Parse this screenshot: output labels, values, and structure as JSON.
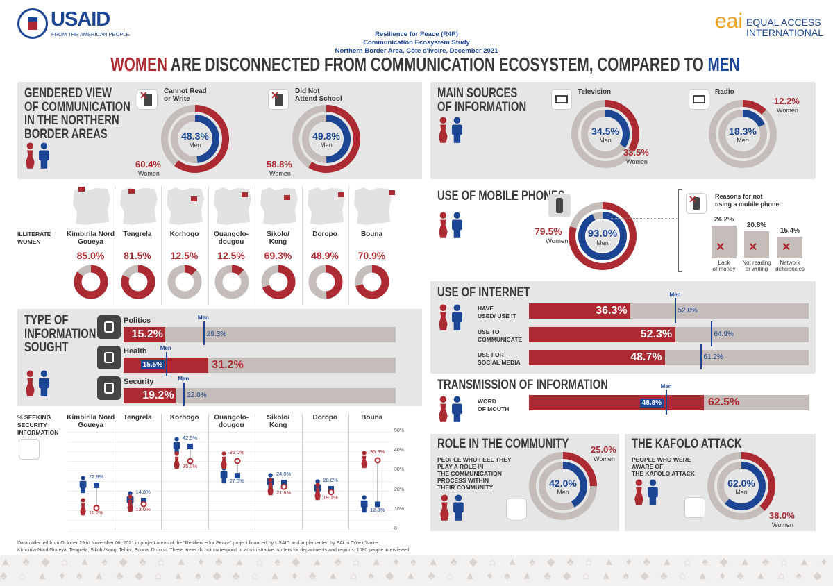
{
  "colors": {
    "women": "#ac2a32",
    "men": "#1c4694",
    "neutral": "#c5bdb9",
    "panel": "#e6e6e6",
    "heading": "#3a3a3a"
  },
  "header": {
    "left_logo": "USAID",
    "left_tagline": "FROM THE AMERICAN PEOPLE",
    "center_lines": [
      "Resilience for Peace (R4P)",
      "Communication Ecosystem Study",
      "Northern Border Area, Côte d'Ivoire, December 2021"
    ],
    "right_logo": "eai",
    "right_name": [
      "EQUAL ACCESS",
      "INTERNATIONAL"
    ]
  },
  "title": {
    "women": "WOMEN",
    "middle": " ARE DISCONNECTED FROM COMMUNICATION ECOSYSTEM, COMPARED TO ",
    "men": "MEN"
  },
  "gendered": {
    "title": [
      "GENDERED VIEW",
      "OF COMMUNICATION",
      "IN THE NORTHERN",
      "BORDER AREAS"
    ],
    "items": [
      {
        "icon": "document-cross-icon",
        "label": [
          "Cannot Read",
          "or Write"
        ],
        "women": "60.4%",
        "women_label": "Women",
        "men": "48.3%",
        "men_label": "Men"
      },
      {
        "icon": "school-cross-icon",
        "label": [
          "Did Not",
          "Attend School"
        ],
        "women": "58.8%",
        "women_label": "Women",
        "men": "49.8%",
        "men_label": "Men"
      }
    ]
  },
  "illiterate": {
    "label": [
      "ILLITERATE",
      "WOMEN"
    ],
    "regions": [
      {
        "name": [
          "Kimbirila Nord",
          "Goueya"
        ],
        "value": "85.0%"
      },
      {
        "name": [
          "Tengrela",
          ""
        ],
        "value": "81.5%"
      },
      {
        "name": [
          "Korhogo",
          ""
        ],
        "value": "12.5%"
      },
      {
        "name": [
          "Ouangolo-",
          "dougou"
        ],
        "value": "12.5%"
      },
      {
        "name": [
          "Sikolo/",
          "Kong"
        ],
        "value": "69.3%"
      },
      {
        "name": [
          "Doropo",
          ""
        ],
        "value": "48.9%"
      },
      {
        "name": [
          "Bouna",
          ""
        ],
        "value": "70.9%"
      }
    ]
  },
  "info_sought": {
    "title": [
      "TYPE OF",
      "INFORMATION",
      "SOUGHT"
    ],
    "men_label": "Men",
    "items": [
      {
        "icon": "ballot-box-icon",
        "label": "Politics",
        "women": "15.2%",
        "men": "29.3%"
      },
      {
        "icon": "medical-cross-icon",
        "label": "Health",
        "women": "31.2%",
        "men": "15.5%"
      },
      {
        "icon": "soldier-icon",
        "label": "Security",
        "women": "19.2%",
        "men": "22.0%"
      }
    ]
  },
  "security": {
    "title": [
      "% SEEKING",
      "SECURITY",
      "INFORMATION"
    ],
    "y_ticks": [
      "0",
      "10%",
      "20%",
      "30%",
      "40%",
      "50%"
    ],
    "ylim": [
      0,
      50
    ],
    "regions": [
      {
        "name": [
          "Kimbirila Nord",
          "Goueya"
        ],
        "men": "22.8%",
        "women": "11.2%"
      },
      {
        "name": [
          "Tengrela",
          ""
        ],
        "men": "14.8%",
        "women": "13.0%"
      },
      {
        "name": [
          "Korhogo",
          ""
        ],
        "men": "42.5%",
        "women": "35.0%"
      },
      {
        "name": [
          "Ouangolo-",
          "dougou"
        ],
        "men": "27.5%",
        "women": "35.0%"
      },
      {
        "name": [
          "Sikolo/",
          "Kong"
        ],
        "men": "24.0%",
        "women": "21.8%"
      },
      {
        "name": [
          "Doropo",
          ""
        ],
        "men": "20.8%",
        "women": "19.1%"
      },
      {
        "name": [
          "Bouna",
          ""
        ],
        "men": "12.8%",
        "women": "35.3%"
      }
    ]
  },
  "footnote": [
    "Data collected from October 29 to November 06, 2021 in project areas of the \"Resilience for Peace\" project financed by USAID and implemented by EAI in Côte d'Ivoire:",
    "Kimbirila-Nord/Goueya, Tengrela, Sikolo/Kong, Tehini, Bouna, Doropo. These areas do not correspond to administrative borders for departments and regions; 1080 people interviewed."
  ],
  "sources": {
    "title": [
      "MAIN SOURCES",
      "OF INFORMATION"
    ],
    "items": [
      {
        "icon": "television-icon",
        "label": "Television",
        "women": "33.5%",
        "women_label": "Women",
        "men": "34.5%",
        "men_label": "Men"
      },
      {
        "icon": "radio-icon",
        "label": "Radio",
        "women": "12.2%",
        "women_label": "Women",
        "men": "18.3%",
        "men_label": "Men"
      }
    ]
  },
  "mobile": {
    "title": "USE OF MOBILE PHONES",
    "women": "79.5%",
    "women_label": "Women",
    "men": "93.0%",
    "men_label": "Men",
    "reasons_title": [
      "Reasons for not",
      "using a mobile phone"
    ],
    "reasons": [
      {
        "value": "24.2%",
        "label": [
          "Lack",
          "of money"
        ],
        "icon": "money-cross-icon"
      },
      {
        "value": "20.8%",
        "label": [
          "Not reading",
          "or writing"
        ],
        "icon": "document-cross-icon"
      },
      {
        "value": "15.4%",
        "label": [
          "Network",
          "deficiencies"
        ],
        "icon": "network-cross-icon"
      }
    ]
  },
  "internet": {
    "title": "USE OF INTERNET",
    "men_label": "Men",
    "items": [
      {
        "label": [
          "HAVE",
          "USED/ USE IT"
        ],
        "women": "36.3%",
        "men": "52.0%"
      },
      {
        "label": [
          "USE TO",
          "COMMUNICATE"
        ],
        "women": "52.3%",
        "men": "64.9%"
      },
      {
        "label": [
          "USE FOR",
          "SOCIAL MEDIA"
        ],
        "women": "48.7%",
        "men": "61.2%"
      }
    ]
  },
  "transmission": {
    "title": "TRANSMISSION OF INFORMATION",
    "men_label": "Men",
    "label": [
      "WORD",
      "OF MOUTH"
    ],
    "women": "62.5%",
    "men": "48.8%"
  },
  "role": {
    "title": "ROLE IN THE COMMUNITY",
    "text": [
      "PEOPLE WHO FEEL THEY",
      "PLAY A ROLE IN",
      "THE COMMUNICATION",
      "PROCESS WITHIN",
      "THEIR COMMUNITY"
    ],
    "women": "25.0%",
    "women_label": "Women",
    "men": "42.0%",
    "men_label": "Men"
  },
  "kafolo": {
    "title": "THE KAFOLO  ATTACK",
    "text": [
      "PEOPLE WHO WERE",
      "AWARE OF",
      "THE KAFOLO ATTACK"
    ],
    "women": "38.0%",
    "women_label": "Women",
    "men": "62.0%",
    "men_label": "Men"
  }
}
